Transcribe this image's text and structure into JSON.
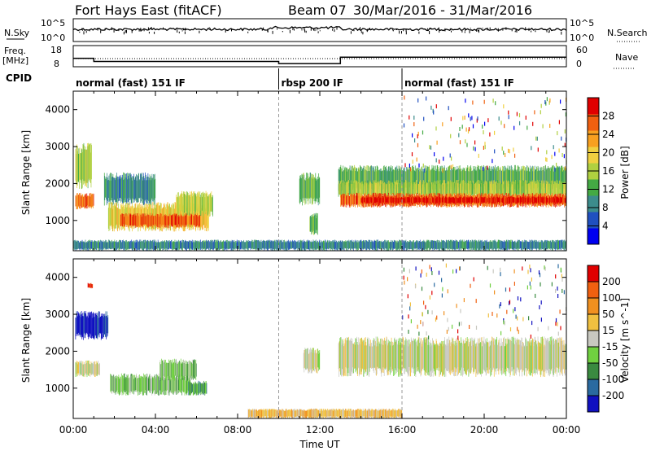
{
  "header": {
    "title": "Fort Hays East (fitACF)",
    "beam": "Beam 07",
    "date_range": "30/Mar/2016 - 31/Mar/2016"
  },
  "chart_data": [
    {
      "type": "line",
      "panel": "noise",
      "left_label": "N.Sky",
      "right_label": "N.Search",
      "left_ticks": [
        "10^5",
        "10^0"
      ],
      "right_ticks": [
        "10^5",
        "10^0"
      ],
      "series": [
        {
          "name": "N.Sky"
        },
        {
          "name": "N.Search"
        }
      ]
    },
    {
      "type": "line",
      "panel": "freq",
      "left_label_1": "Freq.",
      "left_label_2": "[MHz]",
      "right_label": "Nave",
      "left_ticks": [
        "18",
        "8"
      ],
      "right_ticks": [
        "60",
        "0"
      ],
      "series": [
        {
          "name": "Freq.",
          "x": [
            0,
            1.0,
            1.0,
            10.0,
            10.0,
            13.0,
            13.0,
            24.0
          ],
          "y": [
            12,
            12,
            10.5,
            10.5,
            9.5,
            9.5,
            12.5,
            12.5
          ]
        },
        {
          "name": "Nave",
          "x": [
            0,
            24
          ],
          "y": [
            6,
            6
          ]
        }
      ]
    },
    {
      "type": "table",
      "panel": "cpid",
      "label": "CPID",
      "segments": [
        {
          "label": "normal (fast) 151 IF",
          "start": 0,
          "end": 10
        },
        {
          "label": "rbsp 200 IF",
          "start": 10,
          "end": 16
        },
        {
          "label": "normal (fast) 151 IF",
          "start": 16,
          "end": 24
        }
      ]
    },
    {
      "type": "heatmap",
      "panel": "power",
      "ylabel": "Slant Range [km]",
      "xlim": [
        0,
        24
      ],
      "ylim": [
        180,
        4500
      ],
      "y_ticks": [
        1000,
        2000,
        3000,
        4000
      ],
      "colorbar_label": "Power [dB]",
      "colorbar_ticks": [
        "28",
        "24",
        "20",
        "16",
        "12",
        "8",
        "4"
      ],
      "colors": [
        "#0000f0",
        "#2050c0",
        "#3c8c8c",
        "#44aa44",
        "#b0d040",
        "#f0d040",
        "#f8a020",
        "#f06010",
        "#e00000"
      ],
      "regions": [
        {
          "t0": 0.1,
          "t1": 0.9,
          "r0": 1850,
          "r1": 3100,
          "level": 4
        },
        {
          "t0": 0.1,
          "t1": 1.0,
          "r0": 1300,
          "r1": 1750,
          "level": 7
        },
        {
          "t0": 1.5,
          "t1": 4.0,
          "r0": 1400,
          "r1": 2300,
          "level": 2
        },
        {
          "t0": 1.7,
          "t1": 6.6,
          "r0": 700,
          "r1": 1500,
          "level": 5
        },
        {
          "t0": 2.3,
          "t1": 6.2,
          "r0": 800,
          "r1": 1200,
          "level": 7
        },
        {
          "t0": 5.0,
          "t1": 6.8,
          "r0": 1100,
          "r1": 1800,
          "level": 4
        },
        {
          "t0": 11.0,
          "t1": 12.0,
          "r0": 1400,
          "r1": 2300,
          "level": 3
        },
        {
          "t0": 11.5,
          "t1": 11.9,
          "r0": 600,
          "r1": 1200,
          "level": 3
        },
        {
          "t0": 12.9,
          "t1": 24.0,
          "r0": 1800,
          "r1": 2500,
          "level": 3
        },
        {
          "t0": 12.9,
          "t1": 24.0,
          "r0": 1600,
          "r1": 2100,
          "level": 4
        },
        {
          "t0": 13.0,
          "t1": 24.0,
          "r0": 1350,
          "r1": 1750,
          "level": 7
        },
        {
          "t0": 14.0,
          "t1": 24.0,
          "r0": 1450,
          "r1": 1650,
          "level": 8
        },
        {
          "t0": 0.0,
          "t1": 24.0,
          "r0": 180,
          "r1": 480,
          "level": 2
        }
      ]
    },
    {
      "type": "heatmap",
      "panel": "velocity",
      "ylabel": "Slant Range [km]",
      "xlabel": "Time UT",
      "xlim": [
        0,
        24
      ],
      "ylim": [
        180,
        4500
      ],
      "x_ticks": [
        "00:00",
        "04:00",
        "08:00",
        "12:00",
        "16:00",
        "20:00",
        "00:00"
      ],
      "y_ticks": [
        1000,
        2000,
        3000,
        4000
      ],
      "colorbar_label": "Velocity [m s^-1]",
      "colorbar_ticks": [
        "200",
        "100",
        "50",
        "15",
        "-15",
        "-50",
        "-100",
        "-200"
      ],
      "colors": [
        "#1010c0",
        "#2a6aa0",
        "#3a8a40",
        "#70d040",
        "#c8c8c0",
        "#f0c040",
        "#f09020",
        "#f06010",
        "#e00000"
      ],
      "regions": [
        {
          "t0": 0.1,
          "t1": 1.7,
          "r0": 2300,
          "r1": 3100,
          "level": 0
        },
        {
          "t0": 0.1,
          "t1": 1.3,
          "r0": 1300,
          "r1": 1750,
          "level": 4
        },
        {
          "t0": 1.8,
          "t1": 5.7,
          "r0": 800,
          "r1": 1400,
          "level": 3
        },
        {
          "t0": 5.6,
          "t1": 6.5,
          "r0": 800,
          "r1": 1200,
          "level": 2
        },
        {
          "t0": 4.2,
          "t1": 6.0,
          "r0": 1200,
          "r1": 1800,
          "level": 3
        },
        {
          "t0": 11.2,
          "t1": 12.0,
          "r0": 1400,
          "r1": 2100,
          "level": 4
        },
        {
          "t0": 12.9,
          "t1": 24.0,
          "r0": 1300,
          "r1": 2400,
          "level": 4
        },
        {
          "t0": 8.5,
          "t1": 16.0,
          "r0": 180,
          "r1": 450,
          "level": 5
        },
        {
          "t0": 0.7,
          "t1": 0.95,
          "r0": 3700,
          "r1": 3850,
          "level": 8
        }
      ]
    }
  ]
}
